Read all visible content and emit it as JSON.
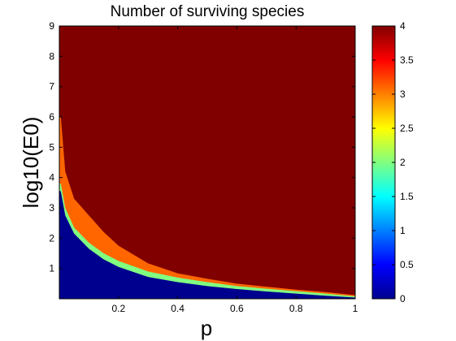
{
  "chart_data": {
    "type": "heatmap",
    "title": "Number of surviving species",
    "xlabel": "p",
    "ylabel": "log10(E0)",
    "xlim": [
      0,
      1
    ],
    "ylim": [
      0,
      9
    ],
    "x_ticks": [
      "0.2",
      "0.4",
      "0.6",
      "0.8",
      "1"
    ],
    "y_ticks": [
      "1",
      "2",
      "3",
      "4",
      "5",
      "6",
      "7",
      "8",
      "9"
    ],
    "colorbar": {
      "range": [
        0,
        4
      ],
      "ticks": [
        "0",
        "0.5",
        "1",
        "1.5",
        "2",
        "2.5",
        "3",
        "3.5",
        "4"
      ],
      "colormap": "jet"
    },
    "regions": [
      {
        "value": 4,
        "color": "#800000",
        "boundary_x": [
          0.005,
          0.02,
          0.05,
          0.1,
          0.15,
          0.2,
          0.3,
          0.4,
          0.5,
          0.6,
          0.7,
          0.8,
          0.9,
          1.0
        ],
        "boundary_y": [
          6.0,
          4.2,
          3.3,
          2.75,
          2.2,
          1.75,
          1.17,
          0.84,
          0.66,
          0.5,
          0.4,
          0.3,
          0.22,
          0.12
        ]
      },
      {
        "value": 3,
        "color": "#ff6600",
        "boundary_x": [
          0.005,
          0.02,
          0.05,
          0.1,
          0.15,
          0.2,
          0.3,
          0.4,
          0.5,
          0.6,
          0.7,
          0.8,
          0.9,
          1.0
        ],
        "boundary_y": [
          3.8,
          3.0,
          2.35,
          1.85,
          1.5,
          1.25,
          0.9,
          0.7,
          0.55,
          0.42,
          0.33,
          0.25,
          0.17,
          0.08
        ]
      },
      {
        "value": 2,
        "color": "#80ff80",
        "boundary_x": [
          0.005,
          0.02,
          0.05,
          0.1,
          0.15,
          0.2,
          0.3,
          0.4,
          0.5,
          0.6,
          0.7,
          0.8,
          0.9,
          1.0
        ],
        "boundary_y": [
          3.55,
          2.75,
          2.15,
          1.65,
          1.3,
          1.05,
          0.72,
          0.55,
          0.42,
          0.32,
          0.24,
          0.17,
          0.1,
          0.04
        ]
      },
      {
        "value": 0,
        "color": "#00008f"
      }
    ]
  }
}
